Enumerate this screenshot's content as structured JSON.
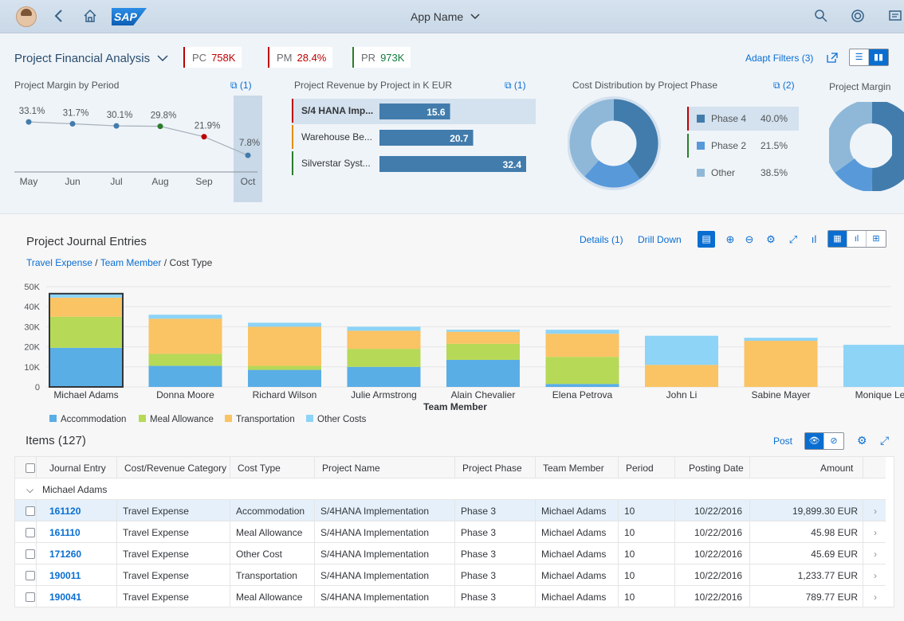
{
  "shell": {
    "app_name": "App Name",
    "icons": [
      "avatar",
      "back-icon",
      "home-icon",
      "sap-logo",
      "search-icon",
      "copilot-icon",
      "notifications-icon"
    ],
    "logo_text": "SAP"
  },
  "header": {
    "title": "Project Financial Analysis",
    "kpis": [
      {
        "label": "PC",
        "value": "758K",
        "color": "#bb0000",
        "bar_color": "#bb0000"
      },
      {
        "label": "PM",
        "value": "28.4%",
        "color": "#bb0000",
        "bar_color": "#bb0000"
      },
      {
        "label": "PR",
        "value": "973K",
        "color": "#107e3e",
        "bar_color": "#2b7d2b"
      }
    ],
    "adapt_filters": "Adapt Filters (3)"
  },
  "cards": {
    "margin_by_period": {
      "title": "Project Margin by Period",
      "expand": "(1)"
    },
    "revenue_by_project": {
      "title": "Project Revenue by Project in K EUR",
      "expand": "(1)"
    },
    "cost_distribution": {
      "title": "Cost Distribution by Project Phase",
      "expand": "(2)"
    },
    "project_margin": {
      "title": "Project Margin"
    }
  },
  "journal": {
    "title": "Project Journal Entries",
    "breadcrumb": [
      "Travel Expense",
      "Team Member",
      "Cost Type"
    ],
    "details": "Details (1)",
    "drill_down": "Drill Down"
  },
  "items": {
    "title": "Items (127)",
    "post": "Post",
    "columns": [
      "Journal Entry",
      "Cost/Revenue Category",
      "Cost Type",
      "Project Name",
      "Project Phase",
      "Team Member",
      "Period",
      "Posting Date",
      "Amount"
    ],
    "group": "Michael Adams",
    "rows": [
      {
        "entry": "161120",
        "category": "Travel Expense",
        "cost_type": "Accommodation",
        "project": "S/4HANA Implementation",
        "phase": "Phase 3",
        "member": "Michael Adams",
        "period": "10",
        "date": "10/22/2016",
        "amount": "19,899.30 EUR"
      },
      {
        "entry": "161110",
        "category": "Travel Expense",
        "cost_type": "Meal Allowance",
        "project": "S/4HANA Implementation",
        "phase": "Phase 3",
        "member": "Michael Adams",
        "period": "10",
        "date": "10/22/2016",
        "amount": "45.98 EUR"
      },
      {
        "entry": "171260",
        "category": "Travel Expense",
        "cost_type": "Other Cost",
        "project": "S/4HANA Implementation",
        "phase": "Phase 3",
        "member": "Michael Adams",
        "period": "10",
        "date": "10/22/2016",
        "amount": "45.69 EUR"
      },
      {
        "entry": "190011",
        "category": "Travel Expense",
        "cost_type": "Transportation",
        "project": "S/4HANA Implementation",
        "phase": "Phase 3",
        "member": "Michael Adams",
        "period": "10",
        "date": "10/22/2016",
        "amount": "1,233.77 EUR"
      },
      {
        "entry": "190041",
        "category": "Travel Expense",
        "cost_type": "Meal Allowance",
        "project": "S/4HANA Implementation",
        "phase": "Phase 3",
        "member": "Michael Adams",
        "period": "10",
        "date": "10/22/2016",
        "amount": "789.77 EUR"
      }
    ]
  },
  "chart_data": [
    {
      "type": "line",
      "title": "Project Margin by Period",
      "categories": [
        "May",
        "Jun",
        "Jul",
        "Aug",
        "Sep",
        "Oct"
      ],
      "values": [
        33.1,
        31.7,
        30.1,
        29.8,
        21.9,
        7.8
      ],
      "labels": [
        "33.1%",
        "31.7%",
        "30.1%",
        "29.8%",
        "21.9%",
        "7.8%"
      ],
      "point_colors": [
        "#427cac",
        "#427cac",
        "#427cac",
        "#2b7d2b",
        "#bb0000",
        "#427cac"
      ],
      "selected": "Oct"
    },
    {
      "type": "bar",
      "title": "Project Revenue by Project in K EUR",
      "categories": [
        "S/4 HANA Imp...",
        "Warehouse Be...",
        "Silverstar Syst..."
      ],
      "values": [
        15.6,
        20.7,
        32.4
      ],
      "category_colors": [
        "#bb0000",
        "#e78c07",
        "#2b7d2b"
      ],
      "selected": "S/4 HANA Imp..."
    },
    {
      "type": "pie",
      "title": "Cost Distribution by Project Phase",
      "categories": [
        "Phase 4",
        "Phase 2",
        "Other"
      ],
      "values": [
        40.0,
        21.5,
        38.5
      ],
      "labels": [
        "40.0%",
        "21.5%",
        "38.5%"
      ],
      "colors": [
        "#427cac",
        "#5899da",
        "#8fb8d8"
      ]
    },
    {
      "type": "bar",
      "stacked": true,
      "xlabel": "Team Member",
      "categories": [
        "Michael Adams",
        "Donna Moore",
        "Richard Wilson",
        "Julie Armstrong",
        "Alain Chevalier",
        "Elena Petrova",
        "John Li",
        "Sabine Mayer",
        "Monique Le"
      ],
      "ylim": [
        0,
        50000
      ],
      "yticks": [
        "0",
        "10K",
        "20K",
        "30K",
        "40K",
        "50K"
      ],
      "series": [
        {
          "name": "Accommodation",
          "color": "#5aaee6",
          "values": [
            19500,
            10500,
            8500,
            10000,
            13500,
            1500,
            0,
            0,
            0
          ]
        },
        {
          "name": "Meal Allowance",
          "color": "#b6d957",
          "values": [
            15500,
            6000,
            2000,
            9000,
            8000,
            13500,
            0,
            0,
            0
          ]
        },
        {
          "name": "Transportation",
          "color": "#fac364",
          "values": [
            9500,
            17500,
            19500,
            9000,
            6000,
            11500,
            11000,
            23000,
            0
          ]
        },
        {
          "name": "Other Costs",
          "color": "#8dd4f7",
          "values": [
            2000,
            2000,
            2000,
            2000,
            1000,
            2000,
            14500,
            1500,
            21000
          ]
        }
      ],
      "legend": "bottom-left",
      "selected": "Michael Adams",
      "grid": true
    }
  ]
}
